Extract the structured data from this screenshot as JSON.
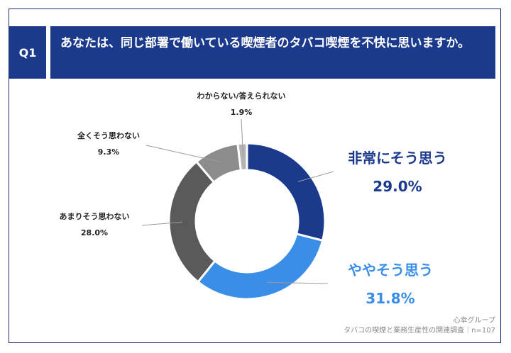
{
  "header": {
    "q_label": "Q1",
    "question": "あなたは、同じ部署で働いている喫煙者のタバコ喫煙を不快に思いますか。"
  },
  "chart_data": {
    "type": "pie",
    "style": "donut",
    "unit": "%",
    "slices": [
      {
        "label": "非常にそう思う",
        "value": 29.0,
        "display": "29.0%",
        "color": "#1b3a8c"
      },
      {
        "label": "ややそう思う",
        "value": 31.8,
        "display": "31.8%",
        "color": "#3a8ee8"
      },
      {
        "label": "あまりそう思わない",
        "value": 28.0,
        "display": "28.0%",
        "color": "#5a5a5a"
      },
      {
        "label": "全くそう思わない",
        "value": 9.3,
        "display": "9.3%",
        "color": "#8c8c8c"
      },
      {
        "label": "わからない/答えられない",
        "value": 1.9,
        "display": "1.9%",
        "color": "#b4b4b4"
      }
    ]
  },
  "footer": {
    "brand": "心幸グループ",
    "source": "タバコの喫煙と業務生産性の関連調査｜n=107"
  }
}
